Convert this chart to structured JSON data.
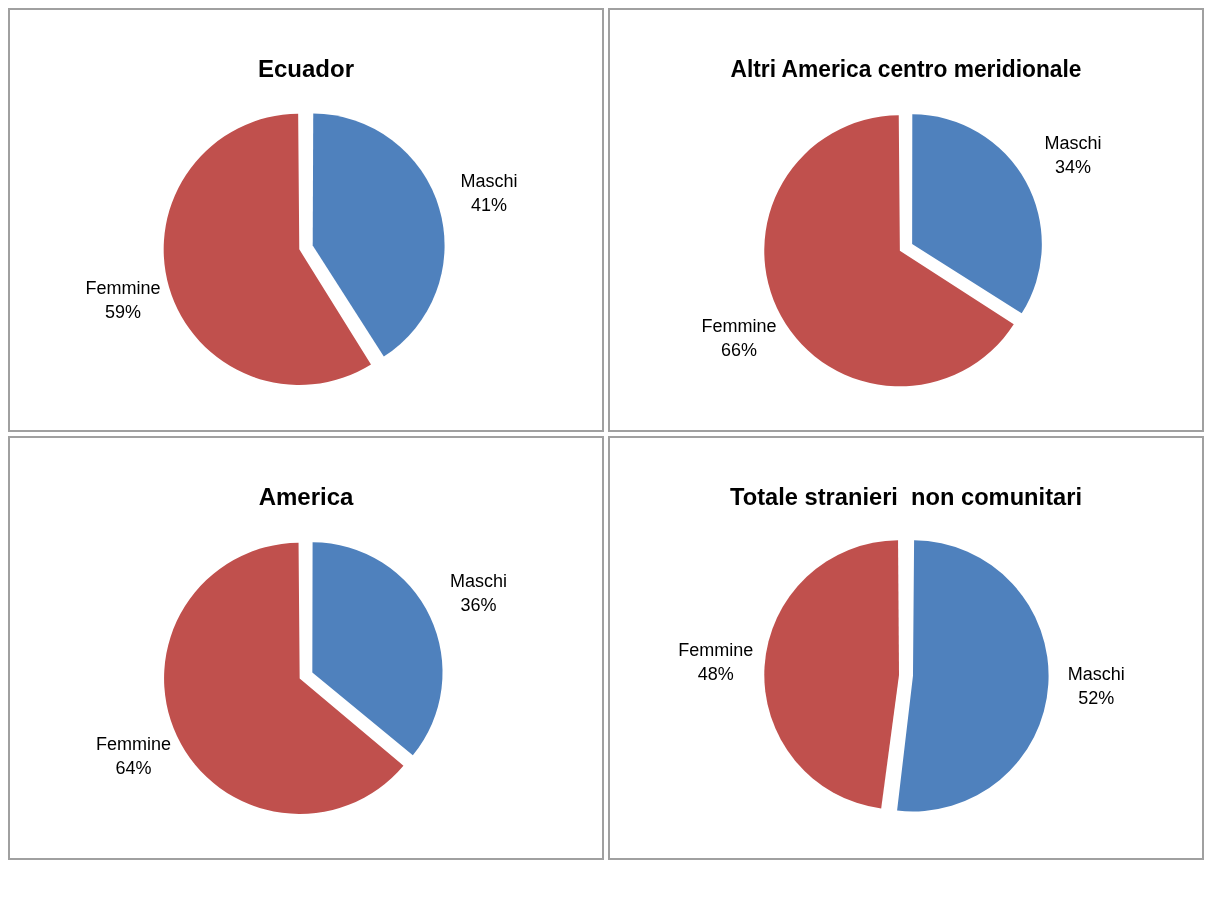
{
  "chart_data": [
    {
      "type": "pie",
      "title": "Ecuador",
      "categories": [
        "Maschi",
        "Femmine"
      ],
      "values": [
        41,
        59
      ],
      "colors": [
        "#4f81bd",
        "#c0504d"
      ],
      "value_labels": [
        "41%",
        "59%"
      ]
    },
    {
      "type": "pie",
      "title": "Altri America centro meridionale",
      "categories": [
        "Maschi",
        "Femmine"
      ],
      "values": [
        34,
        66
      ],
      "colors": [
        "#4f81bd",
        "#c0504d"
      ],
      "value_labels": [
        "34%",
        "66%"
      ]
    },
    {
      "type": "pie",
      "title": "America",
      "categories": [
        "Maschi",
        "Femmine"
      ],
      "values": [
        36,
        64
      ],
      "colors": [
        "#4f81bd",
        "#c0504d"
      ],
      "value_labels": [
        "36%",
        "64%"
      ]
    },
    {
      "type": "pie",
      "title": "Totale stranieri  non comunitari",
      "categories": [
        "Maschi",
        "Femmine"
      ],
      "values": [
        52,
        48
      ],
      "colors": [
        "#4f81bd",
        "#c0504d"
      ],
      "value_labels": [
        "52%",
        "48%"
      ]
    }
  ]
}
